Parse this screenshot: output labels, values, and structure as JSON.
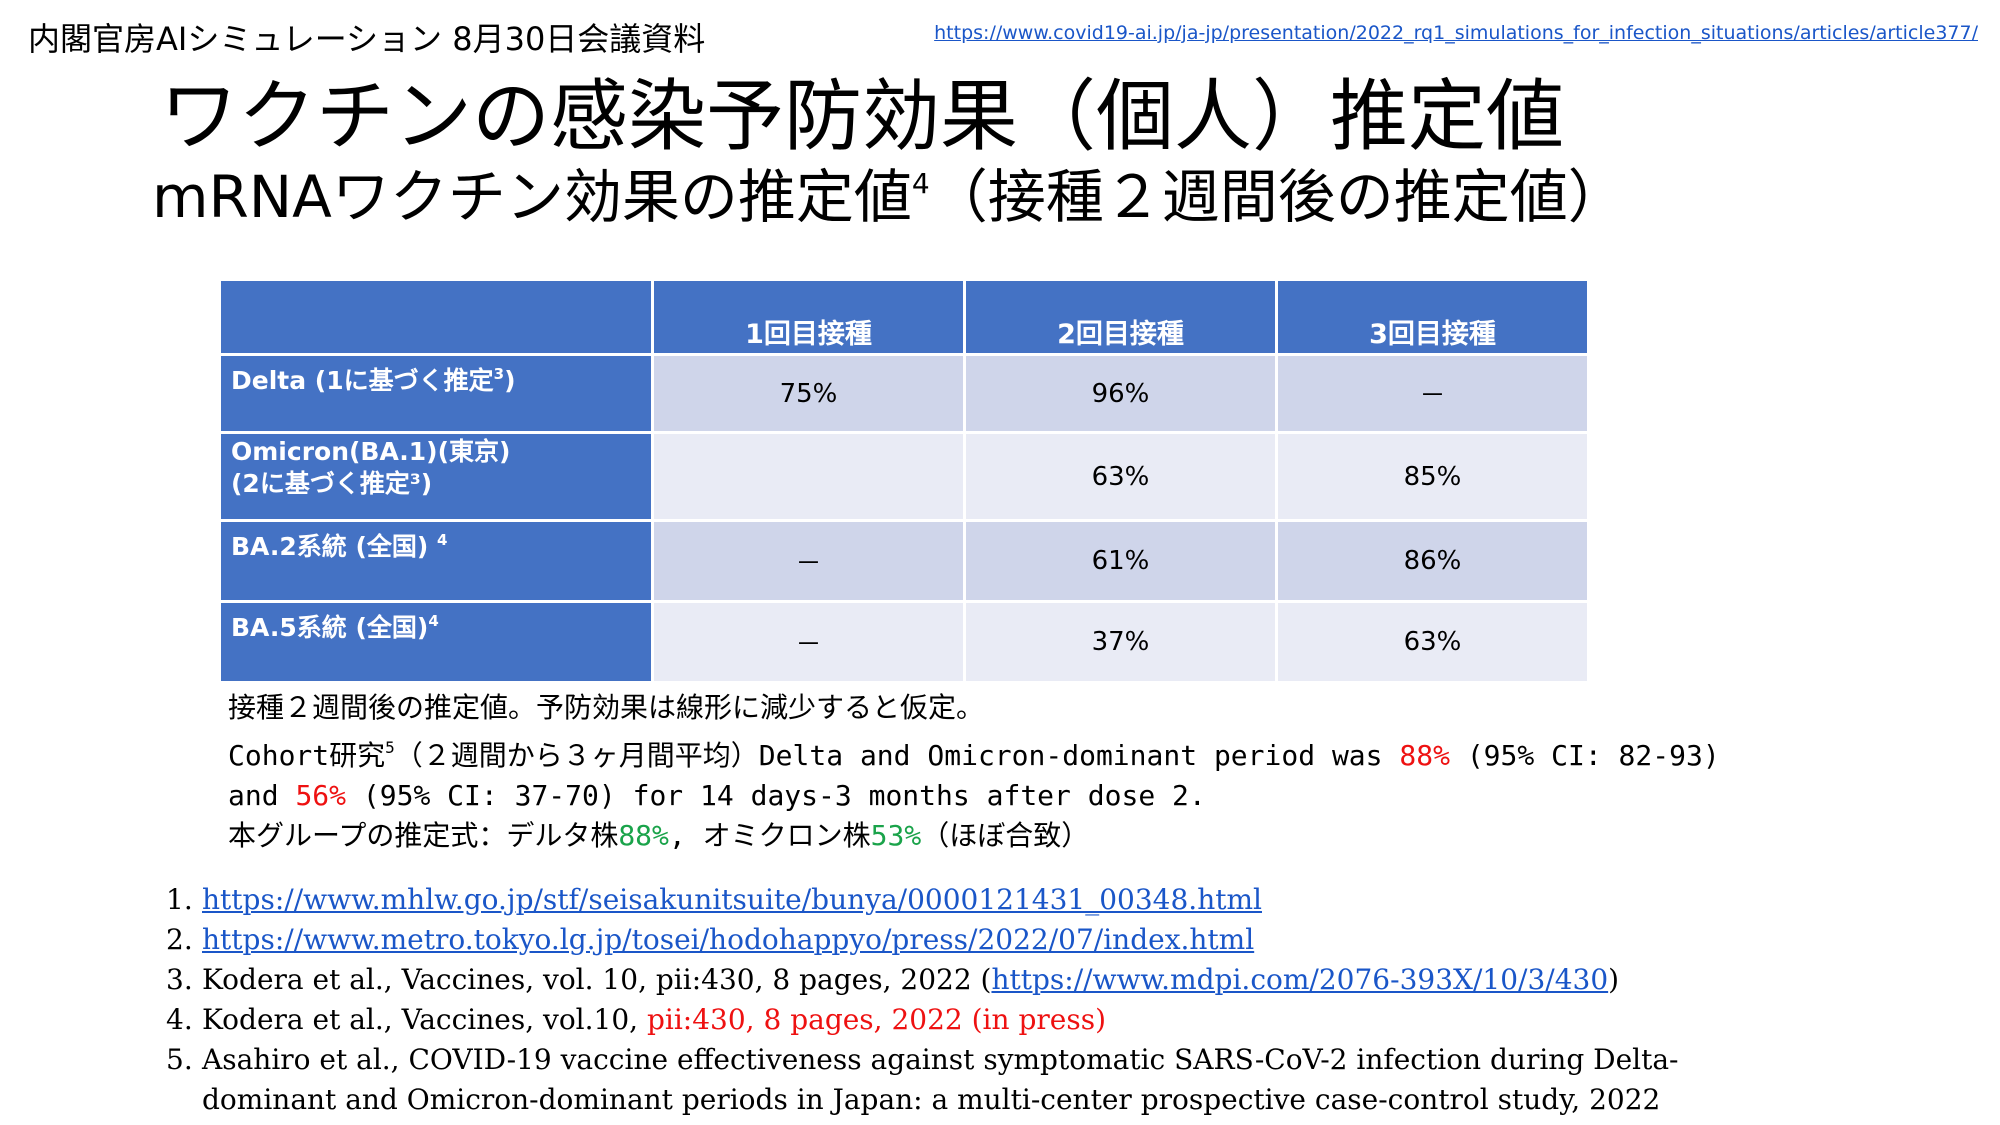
{
  "header": {
    "left_text": "内閣官房AIシミュレーション 8月30日会議資料",
    "link_text": "https://www.covid19-ai.jp/ja-jp/presentation/2022_rq1_simulations_for_infection_situations/articles/article377/"
  },
  "title": {
    "line1": "ワクチンの感染予防効果（個人）推定値",
    "line2_main": "mRNAワクチン効果の推定値",
    "line2_sup": "4",
    "line2_tail": "（接種２週間後の推定値）"
  },
  "table": {
    "headers": [
      "",
      "1回目接種",
      "2回目接種",
      "3回目接種"
    ],
    "rows": [
      {
        "label_line1": "Delta (1に基づく推定",
        "label_sup": "3",
        "label_line1_tail": ")",
        "label_line2": "",
        "values": [
          "75%",
          "96%",
          "－"
        ]
      },
      {
        "label_line1": "Omicron(BA.1)(東京)",
        "label_sup": "",
        "label_line1_tail": "",
        "label_line2": "(2に基づく推定³)",
        "values": [
          "",
          "63%",
          "85%"
        ]
      },
      {
        "label_line1": "BA.2系統 (全国) ",
        "label_sup": "4",
        "label_line1_tail": "",
        "label_line2": "",
        "values": [
          "－",
          "61%",
          "86%"
        ]
      },
      {
        "label_line1": "BA.5系統 (全国)",
        "label_sup": "4",
        "label_line1_tail": "",
        "label_line2": "",
        "values": [
          "－",
          "37%",
          "63%"
        ]
      }
    ]
  },
  "notes": {
    "line1": "接種２週間後の推定値。予防効果は線形に減少すると仮定。",
    "line2_a": "Cohort研究",
    "line2_sup": "5",
    "line2_b": "（２週間から３ヶ月間平均）Delta and Omicron-dominant period was ",
    "line2_red": "88%",
    "line2_c": " (95% CI: 82-93)",
    "line3_a": "and ",
    "line3_red": "56%",
    "line3_b": " (95% CI: 37-70) for 14 days-3 months after dose 2.",
    "line4_a": "本グループの推定式：デルタ株",
    "line4_green1": "88%",
    "line4_b": ", オミクロン株",
    "line4_green2": "53%",
    "line4_c": "（ほぼ合致）"
  },
  "references": [
    {
      "num": "1.",
      "link": "https://www.mhlw.go.jp/stf/seisakunitsuite/bunya/0000121431_00348.html"
    },
    {
      "num": "2.",
      "link": "https://www.metro.tokyo.lg.jp/tosei/hodohappyo/press/2022/07/index.html"
    },
    {
      "num": "3.",
      "pre": "Kodera et al., Vaccines, vol. 10, pii:430, 8 pages, 2022 (",
      "link": "https://www.mdpi.com/2076-393X/10/3/430",
      "post": ")"
    },
    {
      "num": "4.",
      "pre": "Kodera et al., Vaccines, vol.10, ",
      "red": "pii:430, 8 pages, 2022 (in press)"
    },
    {
      "num": "5.",
      "line1": "Asahiro et al., COVID-19 vaccine effectiveness against symptomatic SARS-CoV-2 infection during Delta-",
      "line2": "dominant and Omicron-dominant periods in Japan: a multi-center prospective case-control study, 2022"
    }
  ]
}
